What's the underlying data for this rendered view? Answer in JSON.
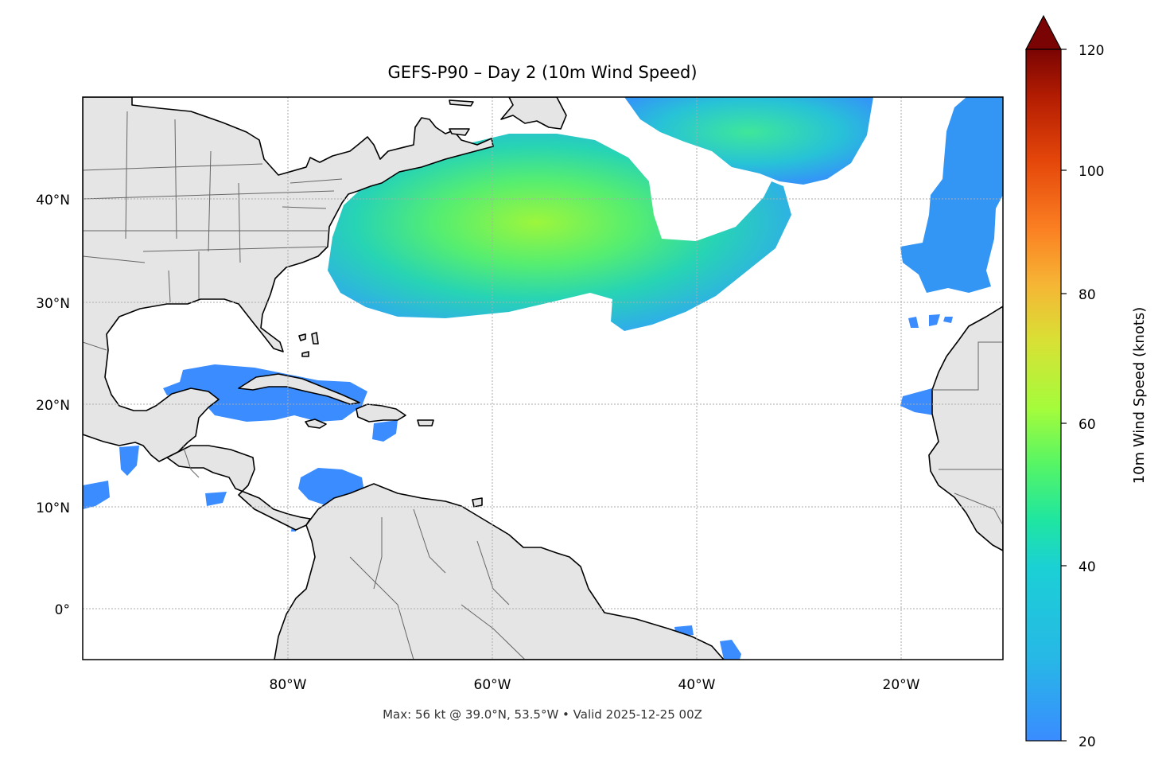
{
  "title": "GEFS-P90 – Day 2 (10m Wind Speed)",
  "footer": "Max: 56 kt @ 39.0°N, 53.5°W • Valid 2025-12-25 00Z",
  "map": {
    "lon_ticks": [
      "80°W",
      "60°W",
      "40°W",
      "20°W"
    ],
    "lat_ticks": [
      "40°N",
      "30°N",
      "20°N",
      "10°N",
      "0°"
    ],
    "land_color": "#e5e5e5",
    "coastline_color": "#000000",
    "border_color": "#666666",
    "gridlines": "dotted"
  },
  "colorbar": {
    "label": "10m Wind Speed (knots)",
    "ticks": [
      "20",
      "40",
      "60",
      "80",
      "100",
      "120"
    ],
    "colormap": "turbo",
    "extend": "max",
    "min_color": "#3a8cff",
    "max_color": "#7a0403"
  }
}
